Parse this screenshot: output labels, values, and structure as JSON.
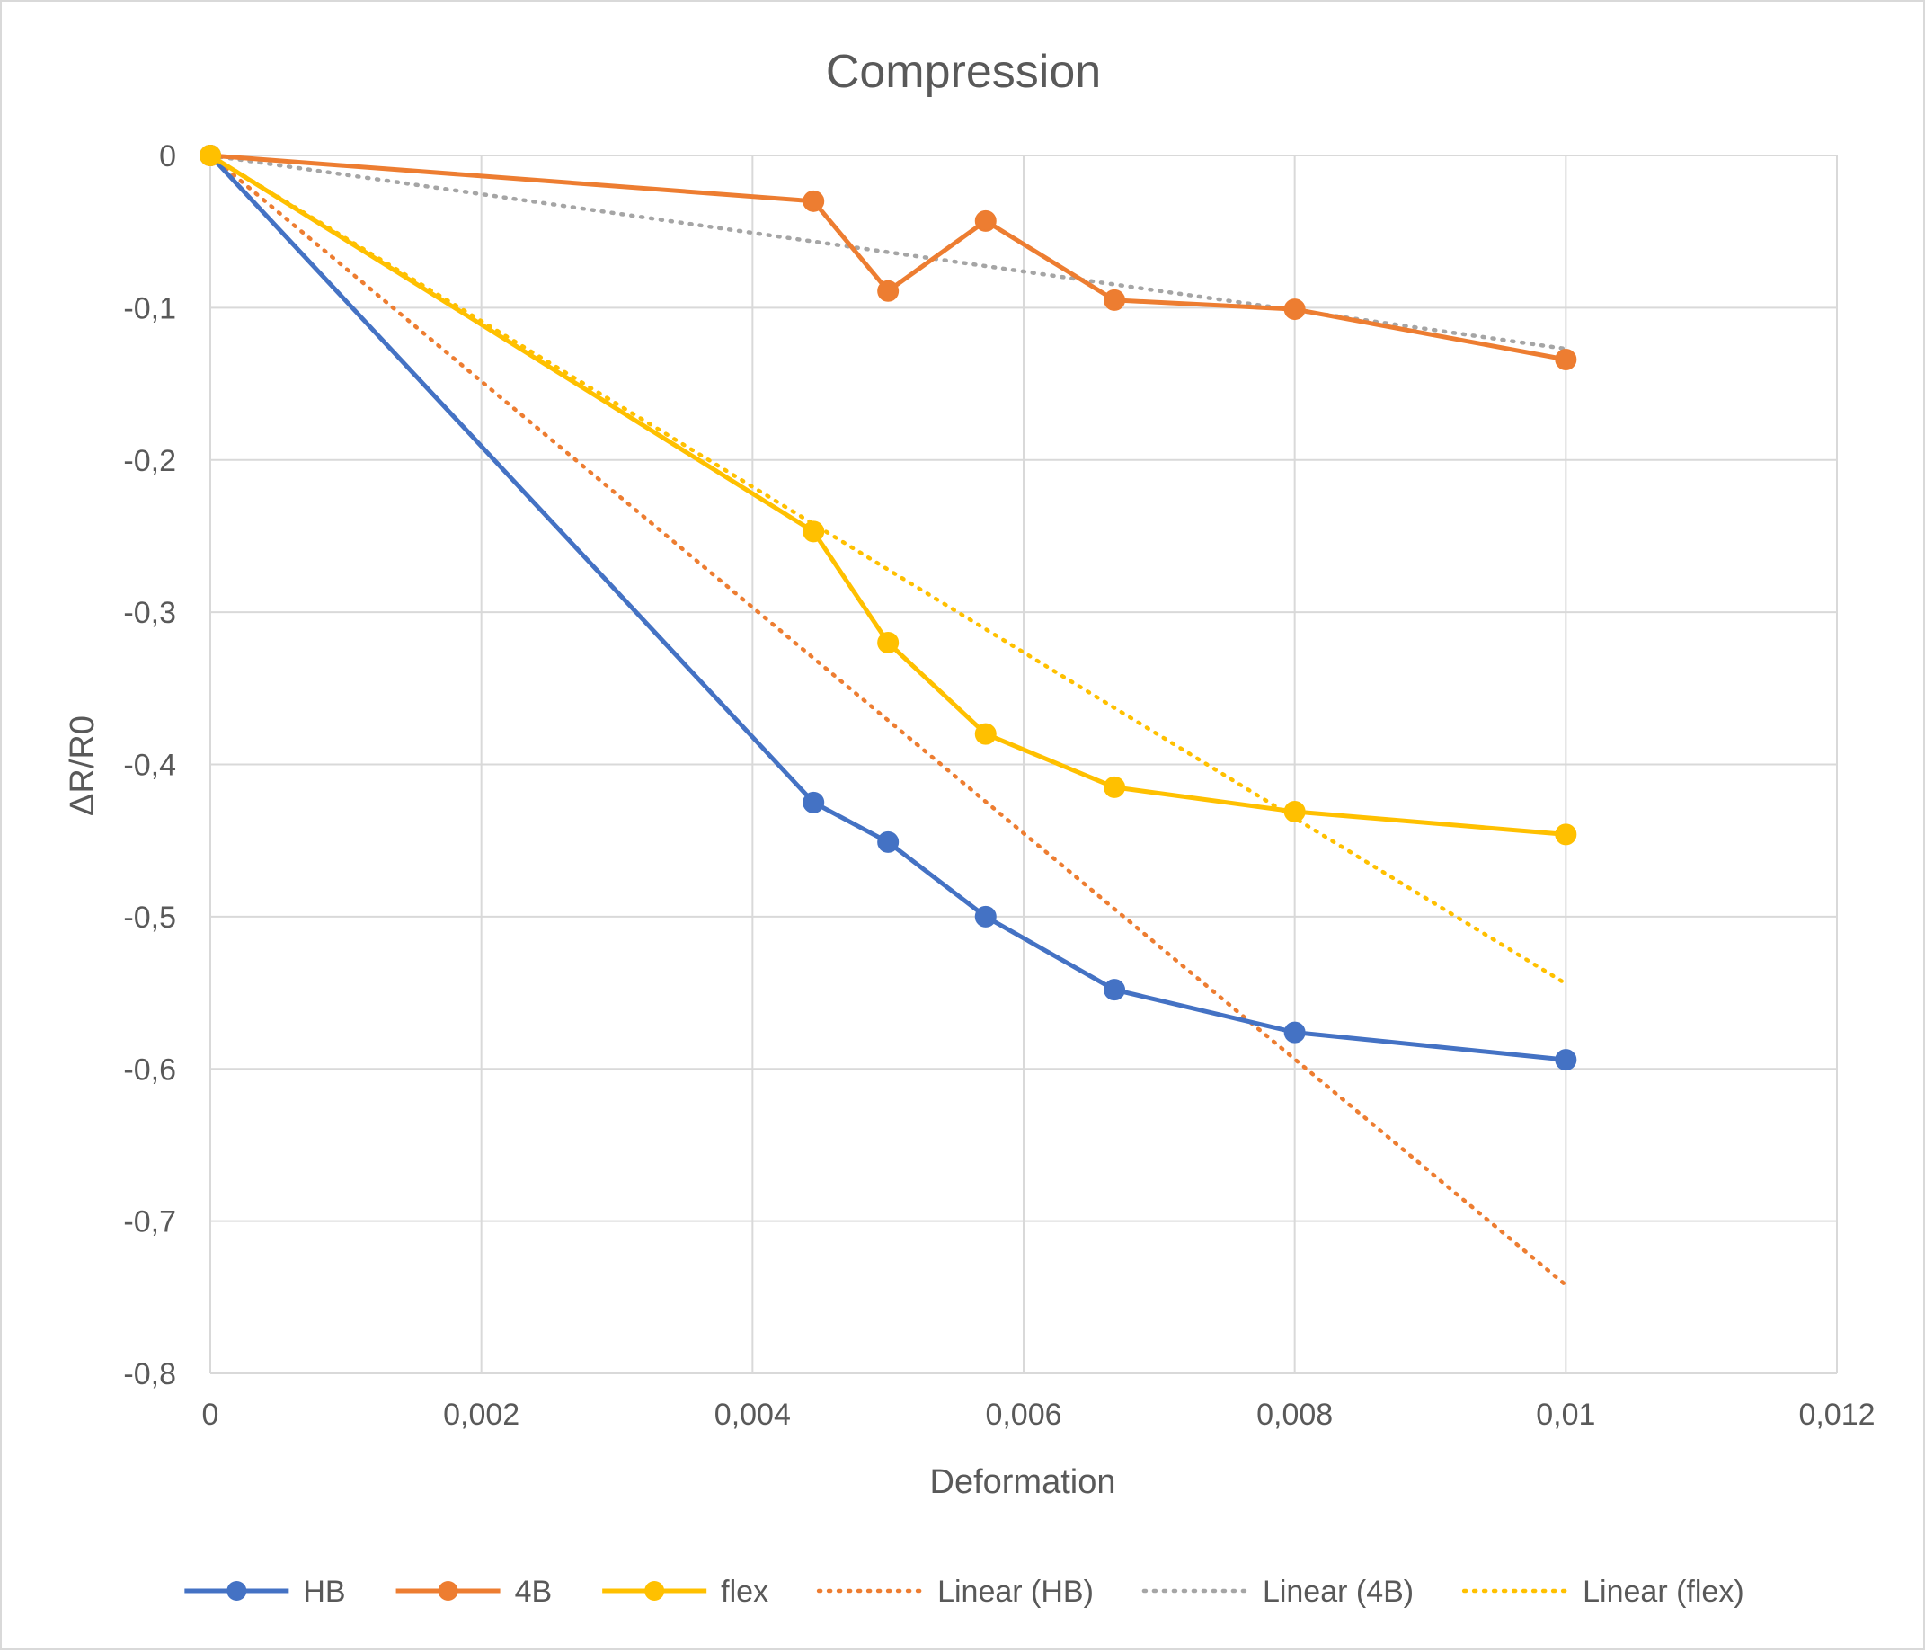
{
  "chart_data": {
    "type": "line",
    "title": "Compression",
    "xlabel": "Deformation",
    "ylabel": "ΔR/R0",
    "xlim": [
      0,
      0.012
    ],
    "ylim": [
      -0.8,
      0
    ],
    "x_ticks": [
      0,
      0.002,
      0.004,
      0.006,
      0.008,
      0.01,
      0.012
    ],
    "x_tick_labels": [
      "0",
      "0,002",
      "0,004",
      "0,006",
      "0,008",
      "0,01",
      "0,012"
    ],
    "y_ticks": [
      0,
      -0.1,
      -0.2,
      -0.3,
      -0.4,
      -0.5,
      -0.6,
      -0.7,
      -0.8
    ],
    "y_tick_labels": [
      "0",
      "-0,1",
      "-0,2",
      "-0,3",
      "-0,4",
      "-0,5",
      "-0,6",
      "-0,7",
      "-0,8"
    ],
    "grid": true,
    "legend_position": "bottom",
    "series": [
      {
        "name": "HB",
        "color": "#4472C4",
        "style": "solid-markers",
        "points": [
          [
            0,
            0
          ],
          [
            0.00445,
            -0.425
          ],
          [
            0.005,
            -0.451
          ],
          [
            0.00572,
            -0.5
          ],
          [
            0.00667,
            -0.548
          ],
          [
            0.008,
            -0.576
          ],
          [
            0.01,
            -0.594
          ]
        ]
      },
      {
        "name": "4B",
        "color": "#ED7D31",
        "style": "solid-markers",
        "points": [
          [
            0,
            0
          ],
          [
            0.00445,
            -0.03
          ],
          [
            0.005,
            -0.089
          ],
          [
            0.00572,
            -0.043
          ],
          [
            0.00667,
            -0.095
          ],
          [
            0.008,
            -0.101
          ],
          [
            0.01,
            -0.134
          ]
        ]
      },
      {
        "name": "flex",
        "color": "#FFC000",
        "style": "solid-markers",
        "points": [
          [
            0,
            0
          ],
          [
            0.00445,
            -0.247
          ],
          [
            0.005,
            -0.32
          ],
          [
            0.00572,
            -0.38
          ],
          [
            0.00667,
            -0.415
          ],
          [
            0.008,
            -0.431
          ],
          [
            0.01,
            -0.446
          ]
        ]
      },
      {
        "name": "Linear (HB)",
        "color": "#ED7D31",
        "style": "dotted",
        "points": [
          [
            0,
            0
          ],
          [
            0.01,
            -0.742
          ]
        ]
      },
      {
        "name": "Linear (4B)",
        "color": "#A5A5A5",
        "style": "dotted",
        "points": [
          [
            0,
            0
          ],
          [
            0.01,
            -0.127
          ]
        ]
      },
      {
        "name": "Linear (flex)",
        "color": "#FFC000",
        "style": "dotted",
        "points": [
          [
            0,
            0
          ],
          [
            0.01,
            -0.544
          ]
        ]
      }
    ]
  }
}
